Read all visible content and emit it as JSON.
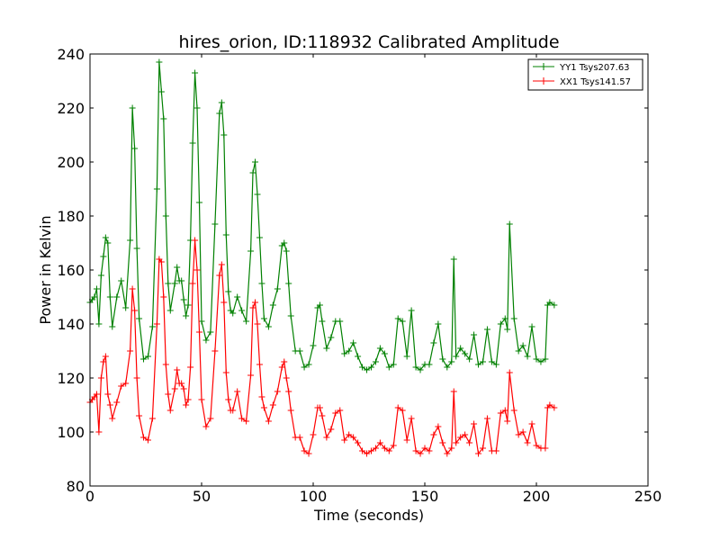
{
  "chart_data": {
    "type": "line",
    "title": "hires_orion, ID:118932 Calibrated Amplitude",
    "xlabel": "Time (seconds)",
    "ylabel": "Power in Kelvin",
    "xlim": [
      0,
      250
    ],
    "ylim": [
      80,
      240
    ],
    "xticks": [
      0,
      50,
      100,
      150,
      200,
      250
    ],
    "yticks": [
      80,
      100,
      120,
      140,
      160,
      180,
      200,
      220,
      240
    ],
    "grid": false,
    "legend_position": "top-right",
    "marker": "+",
    "series": [
      {
        "name": "YY1 Tsys207.63",
        "color": "#008000",
        "x": [
          0,
          1,
          2,
          3,
          4,
          5,
          6,
          7,
          8,
          9,
          10,
          12,
          14,
          16,
          18,
          19,
          20,
          21,
          22,
          24,
          26,
          28,
          30,
          31,
          32,
          33,
          34,
          35,
          36,
          38,
          39,
          40,
          41,
          42,
          43,
          44,
          45,
          46,
          47,
          48,
          49,
          50,
          52,
          54,
          56,
          58,
          59,
          60,
          61,
          62,
          63,
          64,
          66,
          68,
          70,
          72,
          73,
          74,
          75,
          76,
          77,
          78,
          80,
          82,
          84,
          86,
          87,
          88,
          89,
          90,
          92,
          94,
          96,
          98,
          100,
          102,
          103,
          104,
          106,
          108,
          110,
          112,
          114,
          116,
          118,
          120,
          122,
          124,
          126,
          128,
          130,
          132,
          134,
          136,
          138,
          140,
          142,
          144,
          146,
          148,
          150,
          152,
          154,
          156,
          158,
          160,
          162,
          163,
          164,
          166,
          168,
          170,
          172,
          174,
          176,
          178,
          180,
          182,
          184,
          186,
          187,
          188,
          190,
          192,
          194,
          196,
          198,
          200,
          202,
          204,
          205,
          206,
          208
        ],
        "y": [
          148,
          149,
          150,
          153,
          140,
          158,
          165,
          172,
          170,
          150,
          139,
          150,
          156,
          146,
          171,
          220,
          205,
          168,
          142,
          127,
          128,
          139,
          190,
          237,
          226,
          216,
          180,
          155,
          145,
          155,
          161,
          156,
          156,
          149,
          143,
          147,
          171,
          207,
          233,
          220,
          185,
          141,
          134,
          137,
          177,
          218,
          222,
          210,
          173,
          152,
          145,
          144,
          150,
          145,
          141,
          167,
          196,
          200,
          188,
          172,
          155,
          142,
          139,
          147,
          153,
          169,
          170,
          167,
          155,
          143,
          130,
          130,
          124,
          125,
          132,
          146,
          147,
          141,
          131,
          135,
          141,
          141,
          129,
          130,
          133,
          128,
          124,
          123,
          124,
          126,
          131,
          129,
          124,
          125,
          142,
          141,
          128,
          145,
          124,
          123,
          125,
          125,
          133,
          140,
          127,
          124,
          126,
          164,
          128,
          131,
          129,
          127,
          136,
          125,
          126,
          138,
          126,
          125,
          140,
          142,
          138,
          177,
          142,
          130,
          132,
          128,
          139,
          127,
          126,
          127,
          147,
          148,
          147
        ]
      },
      {
        "name": "XX1 Tsys141.57",
        "color": "#ff0000",
        "x": [
          0,
          1,
          2,
          3,
          4,
          5,
          6,
          7,
          8,
          9,
          10,
          12,
          14,
          16,
          18,
          19,
          20,
          21,
          22,
          24,
          26,
          28,
          30,
          31,
          32,
          33,
          34,
          35,
          36,
          38,
          39,
          40,
          41,
          42,
          43,
          44,
          45,
          46,
          47,
          48,
          49,
          50,
          52,
          54,
          56,
          58,
          59,
          60,
          61,
          62,
          63,
          64,
          66,
          68,
          70,
          72,
          73,
          74,
          75,
          76,
          77,
          78,
          80,
          82,
          84,
          86,
          87,
          88,
          89,
          90,
          92,
          94,
          96,
          98,
          100,
          102,
          103,
          104,
          106,
          108,
          110,
          112,
          114,
          116,
          118,
          120,
          122,
          124,
          126,
          128,
          130,
          132,
          134,
          136,
          138,
          140,
          142,
          144,
          146,
          148,
          150,
          152,
          154,
          156,
          158,
          160,
          162,
          163,
          164,
          166,
          168,
          170,
          172,
          174,
          176,
          178,
          180,
          182,
          184,
          186,
          187,
          188,
          190,
          192,
          194,
          196,
          198,
          200,
          202,
          204,
          205,
          206,
          208
        ],
        "y": [
          111,
          112,
          113,
          114,
          100,
          120,
          126,
          128,
          114,
          110,
          105,
          111,
          117,
          118,
          130,
          153,
          145,
          120,
          106,
          98,
          97,
          105,
          140,
          164,
          163,
          150,
          125,
          114,
          108,
          116,
          123,
          118,
          118,
          116,
          110,
          112,
          124,
          155,
          171,
          160,
          137,
          112,
          102,
          105,
          130,
          158,
          162,
          148,
          122,
          112,
          108,
          108,
          115,
          105,
          104,
          121,
          146,
          148,
          140,
          125,
          113,
          109,
          104,
          110,
          115,
          124,
          126,
          120,
          115,
          108,
          98,
          98,
          93,
          92,
          99,
          109,
          109,
          106,
          98,
          101,
          107,
          108,
          97,
          99,
          98,
          96,
          93,
          92,
          93,
          94,
          96,
          94,
          93,
          95,
          109,
          108,
          97,
          105,
          93,
          92,
          94,
          93,
          99,
          102,
          96,
          92,
          94,
          115,
          96,
          98,
          99,
          96,
          103,
          92,
          94,
          105,
          93,
          93,
          107,
          108,
          104,
          122,
          108,
          99,
          100,
          96,
          103,
          95,
          94,
          94,
          109,
          110,
          109
        ]
      }
    ]
  }
}
